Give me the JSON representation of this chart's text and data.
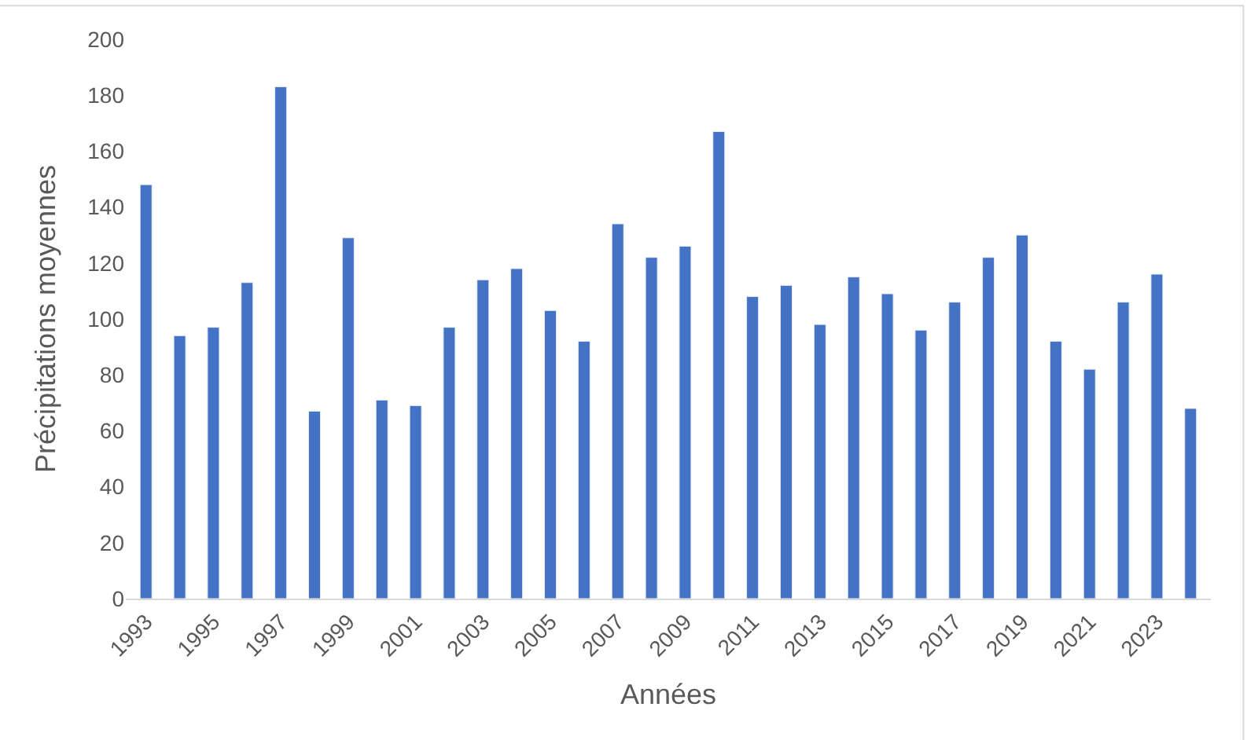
{
  "chart_data": {
    "type": "bar",
    "xlabel": "Années",
    "ylabel": "Précipitations moyennes",
    "categories": [
      "1993",
      null,
      "1995",
      null,
      "1997",
      null,
      "1999",
      null,
      "2001",
      null,
      "2003",
      null,
      "2005",
      null,
      "2007",
      null,
      "2009",
      null,
      "2011",
      null,
      "2013",
      null,
      "2015",
      null,
      "2017",
      null,
      "2019",
      null,
      "2021",
      null,
      "2023",
      null
    ],
    "values": [
      148,
      94,
      97,
      113,
      183,
      67,
      129,
      71,
      69,
      97,
      114,
      118,
      103,
      92,
      134,
      122,
      126,
      167,
      108,
      112,
      98,
      115,
      109,
      96,
      106,
      122,
      130,
      92,
      82,
      106,
      116,
      68
    ],
    "color": "#4472c4",
    "ylim": [
      0,
      200
    ],
    "yticks": [
      0,
      20,
      40,
      60,
      80,
      100,
      120,
      140,
      160,
      180,
      200
    ]
  }
}
